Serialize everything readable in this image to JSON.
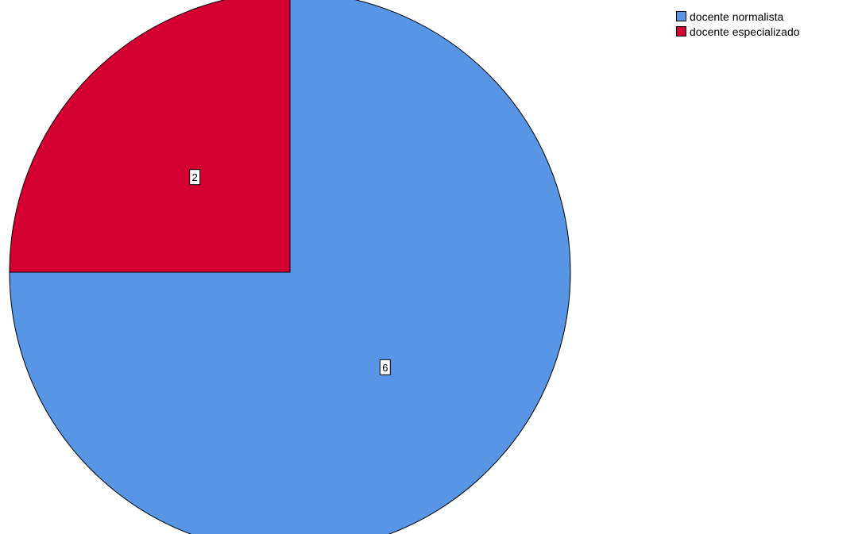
{
  "chart_data": {
    "type": "pie",
    "title": "",
    "categories": [
      "docente normalista",
      "docente especializado"
    ],
    "values": [
      6,
      2
    ],
    "colors": [
      "#5896e5",
      "#d40032"
    ],
    "data_labels": [
      "6",
      "2"
    ],
    "start_angle_deg": 0,
    "direction": "clockwise",
    "legend": {
      "position": "top-right",
      "entries": [
        "docente normalista",
        "docente especializado"
      ]
    }
  }
}
